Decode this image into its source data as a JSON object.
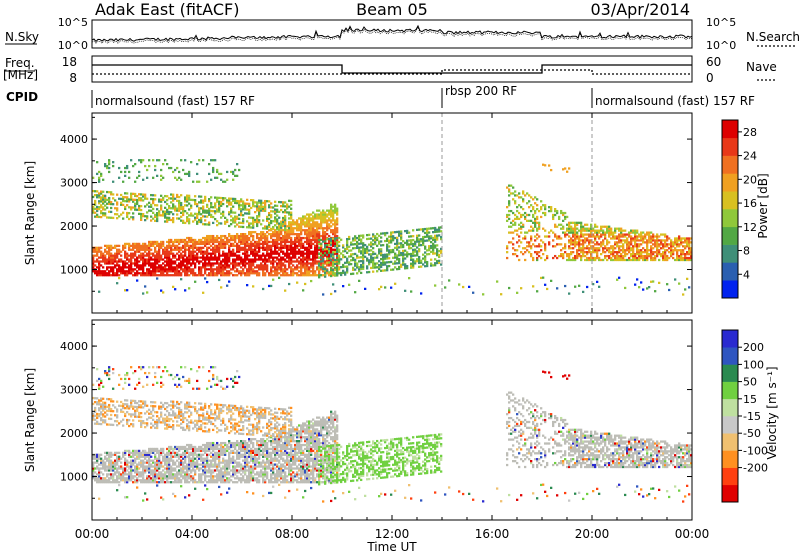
{
  "header": {
    "station": "Adak East (fitACF)",
    "beam": "Beam 05",
    "date": "03/Apr/2014"
  },
  "noise_panel": {
    "left_label": "N.Sky",
    "right_label": "N.Search",
    "left_ticks": [
      "10^5",
      "10^0"
    ],
    "right_ticks": [
      "10^5",
      "10^0"
    ]
  },
  "freq_panel": {
    "left_label_1": "Freq.",
    "left_label_2": "[MHz]",
    "right_label": "Nave",
    "left_ticks": [
      "18",
      "8"
    ],
    "right_ticks": [
      "60",
      "0"
    ]
  },
  "cpid_panel": {
    "label": "CPID",
    "segments": [
      {
        "start_hour": 0,
        "end_hour": 14,
        "label": "normalsound (fast) 157 RF"
      },
      {
        "start_hour": 14,
        "end_hour": 20,
        "label": "rbsp 200 RF"
      },
      {
        "start_hour": 20,
        "end_hour": 24,
        "label": "normalsound (fast) 157 RF"
      }
    ]
  },
  "colors": {
    "power": [
      "#0022ee",
      "#2a5fb0",
      "#3f8f78",
      "#52a844",
      "#8fc83a",
      "#d8c020",
      "#f0a020",
      "#f07020",
      "#e83818",
      "#dd0000"
    ],
    "velocity": [
      "#e00000",
      "#ff4010",
      "#ff9020",
      "#f0c070",
      "#c8c8c8",
      "#bfe0a0",
      "#70d040",
      "#2a8a50",
      "#2f55c0",
      "#2a2ad0"
    ],
    "velocity_gray": "#bdbdb6"
  },
  "chart_data": [
    {
      "type": "heatmap",
      "title": "Power",
      "ylabel": "Slant Range [km]",
      "ylim": [
        0,
        4600
      ],
      "yticks": [
        "1000",
        "2000",
        "3000",
        "4000"
      ],
      "xlim": [
        0,
        24
      ],
      "colorbar": {
        "label": "Power [dB]",
        "ticks": [
          "4",
          "8",
          "12",
          "16",
          "20",
          "24",
          "28"
        ],
        "range": [
          0,
          30
        ]
      }
    },
    {
      "type": "heatmap",
      "title": "Velocity",
      "ylabel": "Slant Range [km]",
      "xlabel": "Time UT",
      "ylim": [
        0,
        4600
      ],
      "yticks": [
        "1000",
        "2000",
        "3000",
        "4000"
      ],
      "xlim": [
        0,
        24
      ],
      "xticks": [
        "00:00",
        "04:00",
        "08:00",
        "12:00",
        "16:00",
        "20:00",
        "00:00"
      ],
      "colorbar": {
        "label": "Velocity [m s⁻¹]",
        "ticks": [
          "200",
          "100",
          "50",
          "15",
          "-15",
          "-50",
          "-100",
          "-200"
        ]
      }
    }
  ]
}
